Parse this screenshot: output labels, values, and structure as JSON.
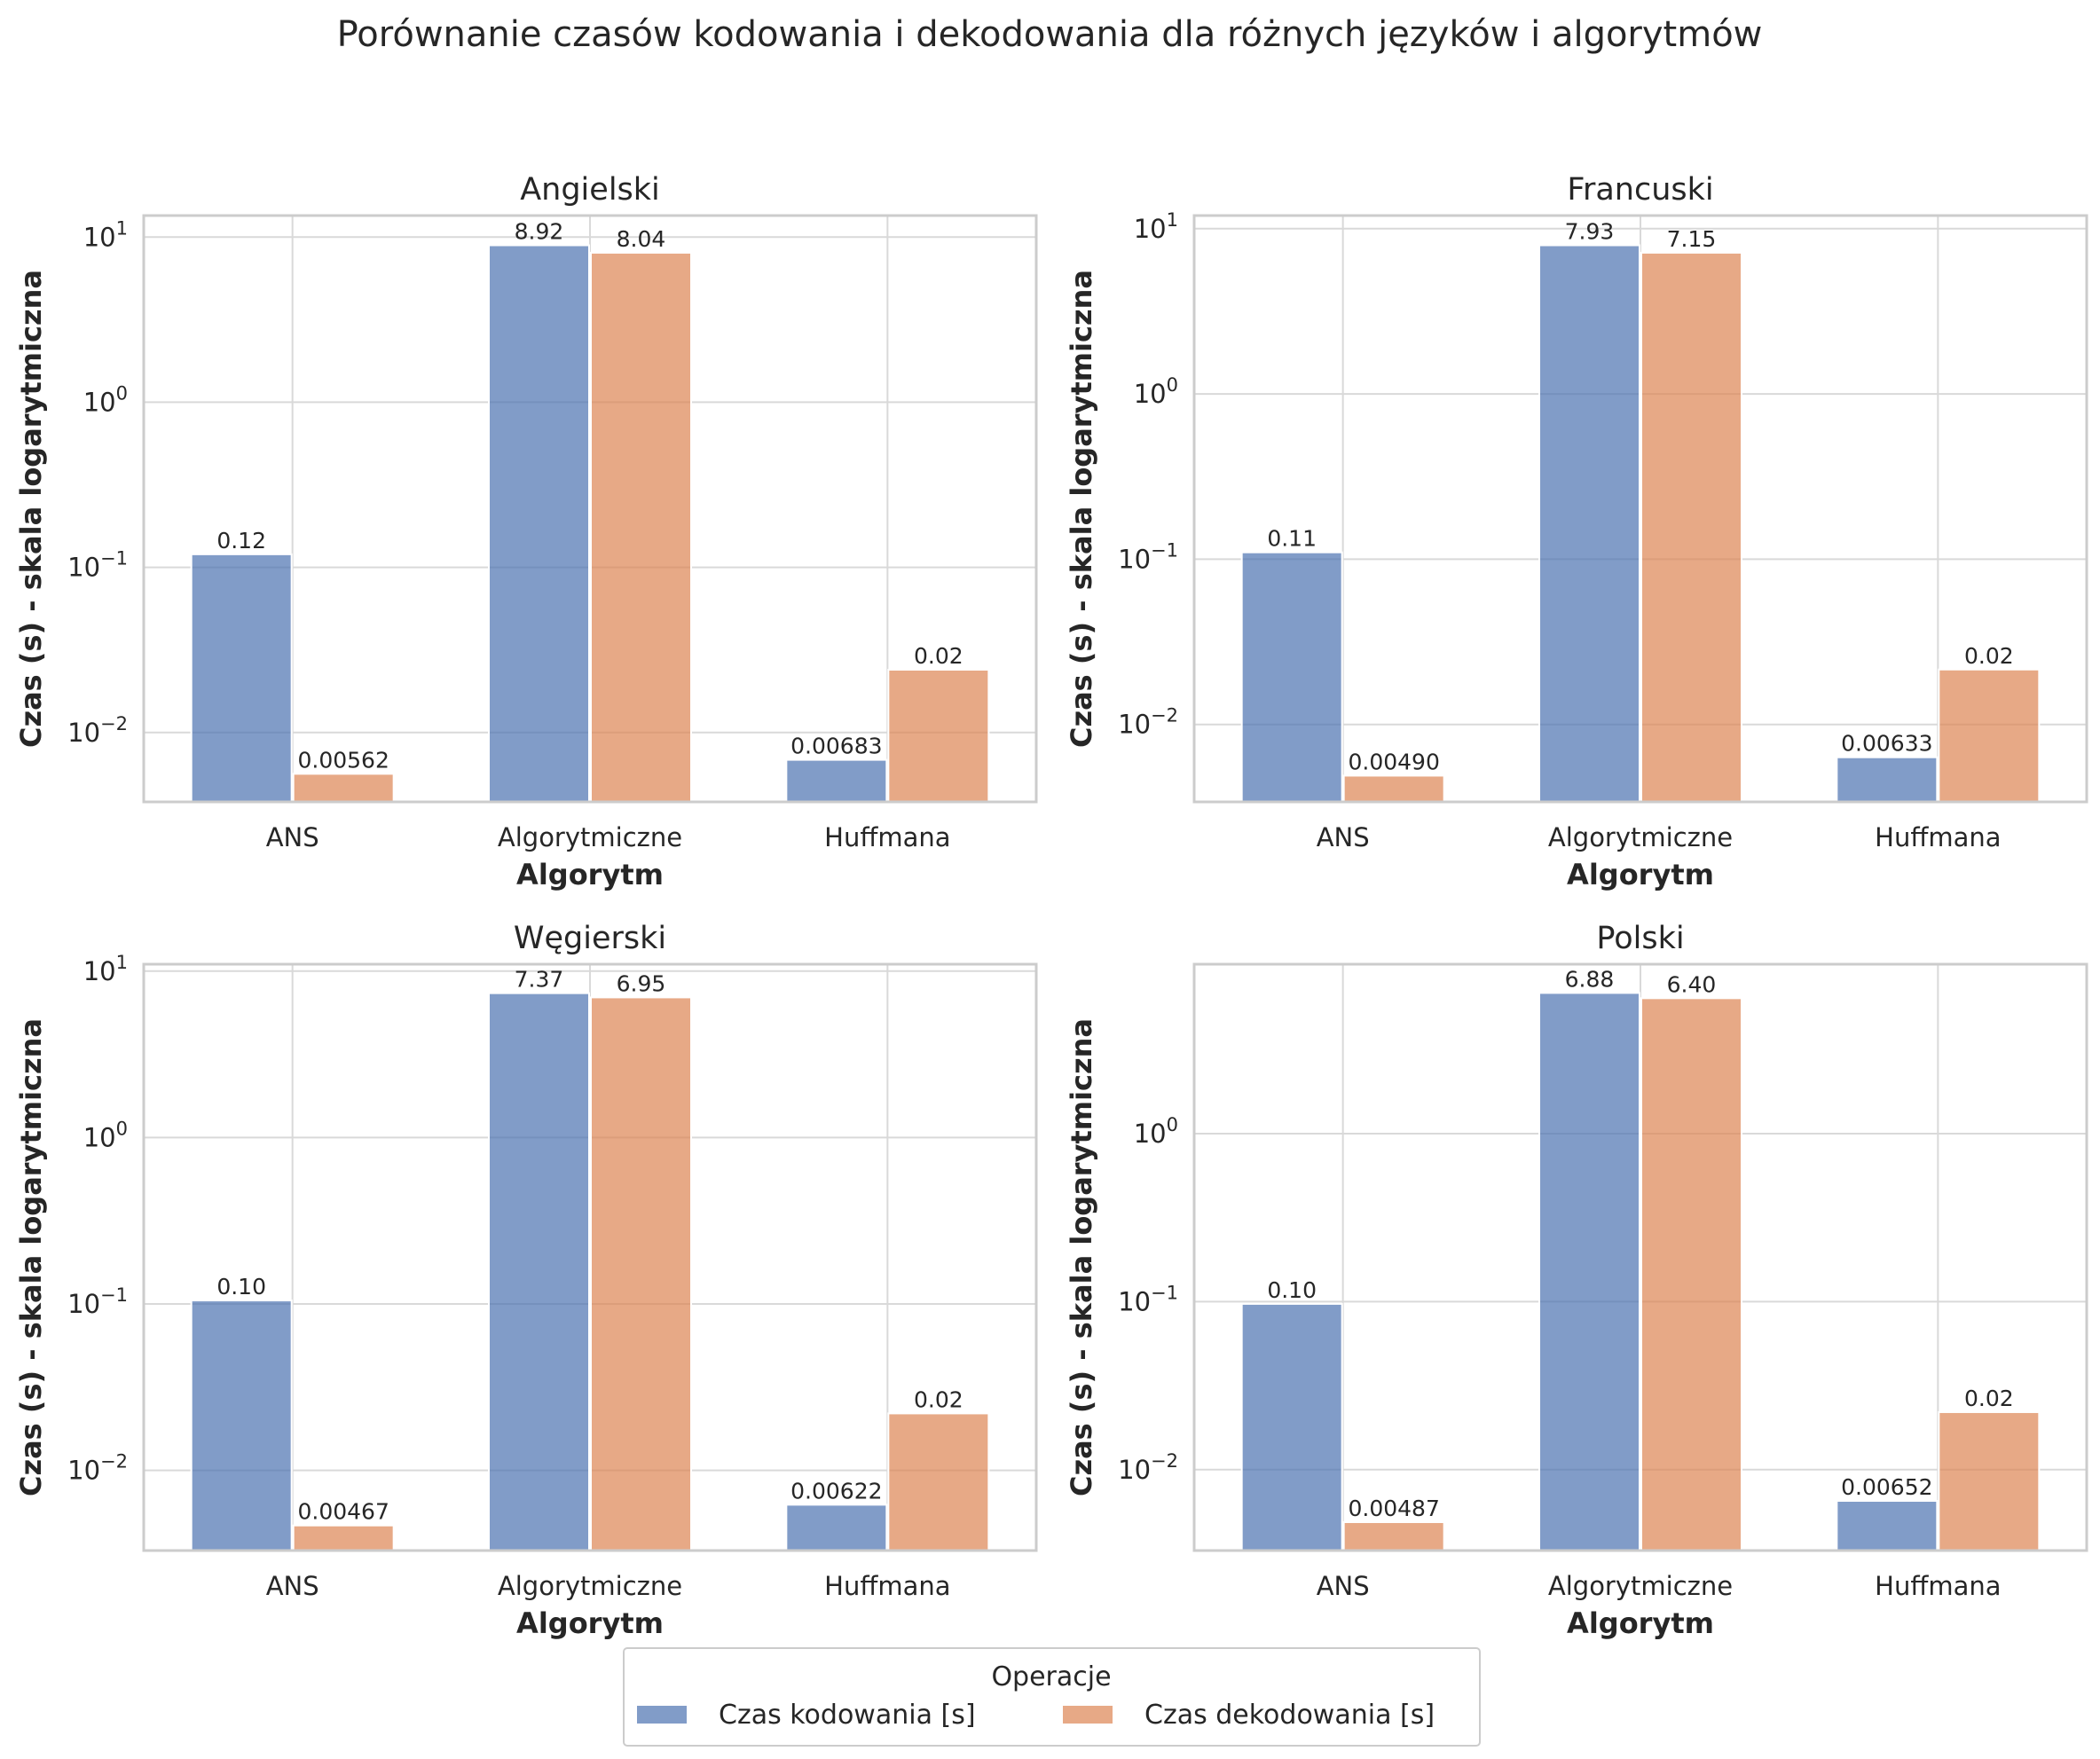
{
  "figure": {
    "title": "Porównanie czasów kodowania i dekodowania dla różnych języków i algorytmów"
  },
  "legend": {
    "title": "Operacje",
    "placement": "bottom-center"
  },
  "colors": {
    "encode": "#4c72b0",
    "decode": "#dd8452",
    "grid": "#d9d9d9",
    "frame": "#cccccc",
    "text": "#262626"
  },
  "chart_data": [
    {
      "type": "bar",
      "title": "Angielski",
      "xlabel": "Algorytm",
      "ylabel": "Czas (s) - skala logarytmiczna",
      "yscale": "log",
      "ylim": [
        0.0038,
        13.5
      ],
      "yticks": [
        {
          "value": 0.01,
          "exp": "−2"
        },
        {
          "value": 0.1,
          "exp": "−1"
        },
        {
          "value": 1,
          "exp": "0"
        },
        {
          "value": 10,
          "exp": "1"
        }
      ],
      "grid": true,
      "categories": [
        "ANS",
        "Algorytmiczne",
        "Huffmana"
      ],
      "series": [
        {
          "name": "Czas kodowania [s]",
          "values": [
            0.12,
            8.92,
            0.00683
          ],
          "labels": [
            "0.12",
            "8.92",
            "0.00683"
          ]
        },
        {
          "name": "Czas dekodowania [s]",
          "values": [
            0.00562,
            8.04,
            0.024
          ],
          "labels": [
            "0.00562",
            "8.04",
            "0.02"
          ]
        }
      ]
    },
    {
      "type": "bar",
      "title": "Francuski",
      "xlabel": "Algorytm",
      "ylabel": "Czas (s) - skala logarytmiczna",
      "yscale": "log",
      "ylim": [
        0.0034,
        12.0
      ],
      "yticks": [
        {
          "value": 0.01,
          "exp": "−2"
        },
        {
          "value": 0.1,
          "exp": "−1"
        },
        {
          "value": 1,
          "exp": "0"
        },
        {
          "value": 10,
          "exp": "1"
        }
      ],
      "grid": true,
      "categories": [
        "ANS",
        "Algorytmiczne",
        "Huffmana"
      ],
      "series": [
        {
          "name": "Czas kodowania [s]",
          "values": [
            0.11,
            7.93,
            0.00633
          ],
          "labels": [
            "0.11",
            "7.93",
            "0.00633"
          ]
        },
        {
          "name": "Czas dekodowania [s]",
          "values": [
            0.0049,
            7.15,
            0.0215
          ],
          "labels": [
            "0.00490",
            "7.15",
            "0.02"
          ]
        }
      ]
    },
    {
      "type": "bar",
      "title": "Węgierski",
      "xlabel": "Algorytm",
      "ylabel": "Czas (s) - skala logarytmiczna",
      "yscale": "log",
      "ylim": [
        0.0033,
        11.0
      ],
      "yticks": [
        {
          "value": 0.01,
          "exp": "−2"
        },
        {
          "value": 0.1,
          "exp": "−1"
        },
        {
          "value": 1,
          "exp": "0"
        },
        {
          "value": 10,
          "exp": "1"
        }
      ],
      "grid": true,
      "categories": [
        "ANS",
        "Algorytmiczne",
        "Huffmana"
      ],
      "series": [
        {
          "name": "Czas kodowania [s]",
          "values": [
            0.105,
            7.37,
            0.00622
          ],
          "labels": [
            "0.10",
            "7.37",
            "0.00622"
          ]
        },
        {
          "name": "Czas dekodowania [s]",
          "values": [
            0.00467,
            6.95,
            0.022
          ],
          "labels": [
            "0.00467",
            "6.95",
            "0.02"
          ]
        }
      ]
    },
    {
      "type": "bar",
      "title": "Polski",
      "xlabel": "Algorytm",
      "ylabel": "Czas (s) - skala logarytmiczna",
      "yscale": "log",
      "ylim": [
        0.0033,
        10.2
      ],
      "yticks": [
        {
          "value": 0.01,
          "exp": "−2"
        },
        {
          "value": 0.1,
          "exp": "−1"
        },
        {
          "value": 1,
          "exp": "0"
        }
      ],
      "grid": true,
      "categories": [
        "ANS",
        "Algorytmiczne",
        "Huffmana"
      ],
      "series": [
        {
          "name": "Czas kodowania [s]",
          "values": [
            0.097,
            6.88,
            0.00652
          ],
          "labels": [
            "0.10",
            "6.88",
            "0.00652"
          ]
        },
        {
          "name": "Czas dekodowania [s]",
          "values": [
            0.00487,
            6.4,
            0.022
          ],
          "labels": [
            "0.00487",
            "6.40",
            "0.02"
          ]
        }
      ]
    }
  ]
}
